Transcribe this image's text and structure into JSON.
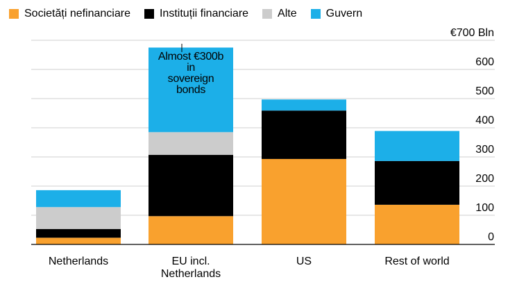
{
  "chart_data": {
    "type": "bar",
    "stacked": true,
    "categories": [
      [
        "Netherlands"
      ],
      [
        "EU incl.",
        "Netherlands"
      ],
      [
        "US"
      ],
      [
        "Rest of world"
      ]
    ],
    "series": [
      {
        "name": "Societăți nefinanciare",
        "color": "#f9a12e",
        "values": [
          23,
          97,
          293,
          136
        ]
      },
      {
        "name": "Instituții financiare",
        "color": "#000000",
        "values": [
          30,
          210,
          166,
          150
        ]
      },
      {
        "name": "Alte",
        "color": "#cccccc",
        "values": [
          75,
          78,
          0,
          0
        ]
      },
      {
        "name": "Guvern",
        "color": "#1cafe8",
        "values": [
          58,
          290,
          38,
          103
        ]
      }
    ],
    "ylim": [
      0,
      700
    ],
    "yticks": [
      {
        "value": 0,
        "label": "0"
      },
      {
        "value": 100,
        "label": "100"
      },
      {
        "value": 200,
        "label": "200"
      },
      {
        "value": 300,
        "label": "300"
      },
      {
        "value": 400,
        "label": "400"
      },
      {
        "value": 500,
        "label": "500"
      },
      {
        "value": 600,
        "label": "600"
      },
      {
        "value": 700,
        "label": "€700 Bln"
      }
    ],
    "annotation": {
      "text_lines": [
        "Almost €300b",
        "in",
        "sovereign",
        "bonds"
      ],
      "category_index": 1
    },
    "grid": true,
    "legend_position": "top-left"
  }
}
